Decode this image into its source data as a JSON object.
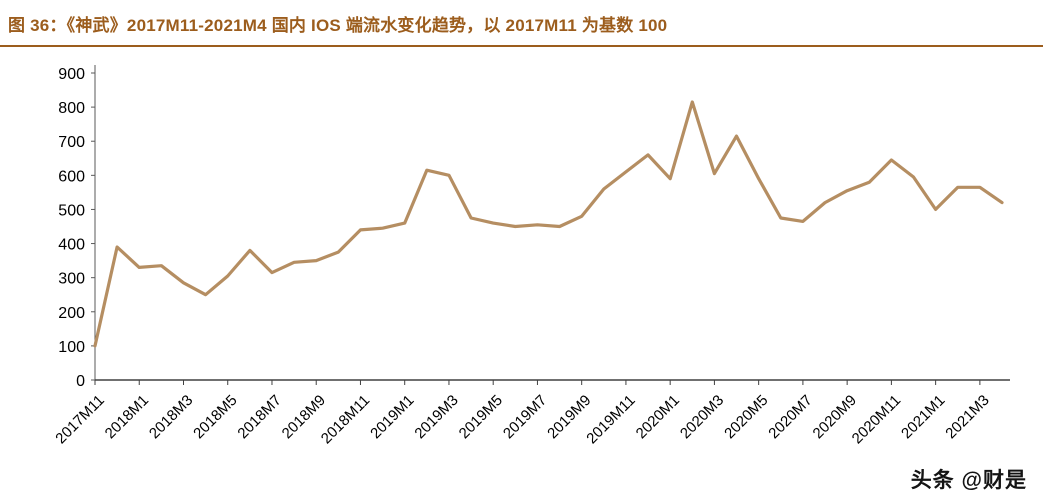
{
  "header": {
    "title": "图 36：《神武》2017M11-2021M4 国内 IOS 端流水变化趋势，以 2017M11 为基数 100",
    "accent_color": "#9c5d1d"
  },
  "chart_data": {
    "type": "line",
    "title": "《神武》2017M11-2021M4 国内 IOS 端流水变化趋势，以 2017M11 为基数 100",
    "x": [
      "2017M11",
      "2017M12",
      "2018M1",
      "2018M2",
      "2018M3",
      "2018M4",
      "2018M5",
      "2018M6",
      "2018M7",
      "2018M8",
      "2018M9",
      "2018M10",
      "2018M11",
      "2018M12",
      "2019M1",
      "2019M2",
      "2019M3",
      "2019M4",
      "2019M5",
      "2019M6",
      "2019M7",
      "2019M8",
      "2019M9",
      "2019M10",
      "2019M11",
      "2019M12",
      "2020M1",
      "2020M2",
      "2020M3",
      "2020M4",
      "2020M5",
      "2020M6",
      "2020M7",
      "2020M8",
      "2020M9",
      "2020M10",
      "2020M11",
      "2020M12",
      "2021M1",
      "2021M2",
      "2021M3",
      "2021M4"
    ],
    "values": [
      100,
      390,
      330,
      335,
      285,
      250,
      305,
      380,
      315,
      345,
      350,
      375,
      440,
      445,
      460,
      615,
      600,
      475,
      460,
      450,
      455,
      450,
      480,
      560,
      610,
      660,
      590,
      815,
      605,
      715,
      590,
      475,
      465,
      520,
      555,
      580,
      645,
      595,
      500,
      565,
      565,
      520
    ],
    "x_tick_labels": [
      "2017M11",
      "2018M1",
      "2018M3",
      "2018M5",
      "2018M7",
      "2018M9",
      "2018M11",
      "2019M1",
      "2019M3",
      "2019M5",
      "2019M7",
      "2019M9",
      "2019M11",
      "2020M1",
      "2020M3",
      "2020M5",
      "2020M7",
      "2020M9",
      "2020M11",
      "2021M1",
      "2021M3"
    ],
    "x_tick_every": 2,
    "y_ticks": [
      0,
      100,
      200,
      300,
      400,
      500,
      600,
      700,
      800,
      900
    ],
    "ylim": [
      0,
      900
    ],
    "xlabel": "",
    "ylabel": "",
    "grid": false,
    "legend": "none",
    "line_color": "#b58e62"
  },
  "watermark": {
    "text": "头条 @财是"
  }
}
